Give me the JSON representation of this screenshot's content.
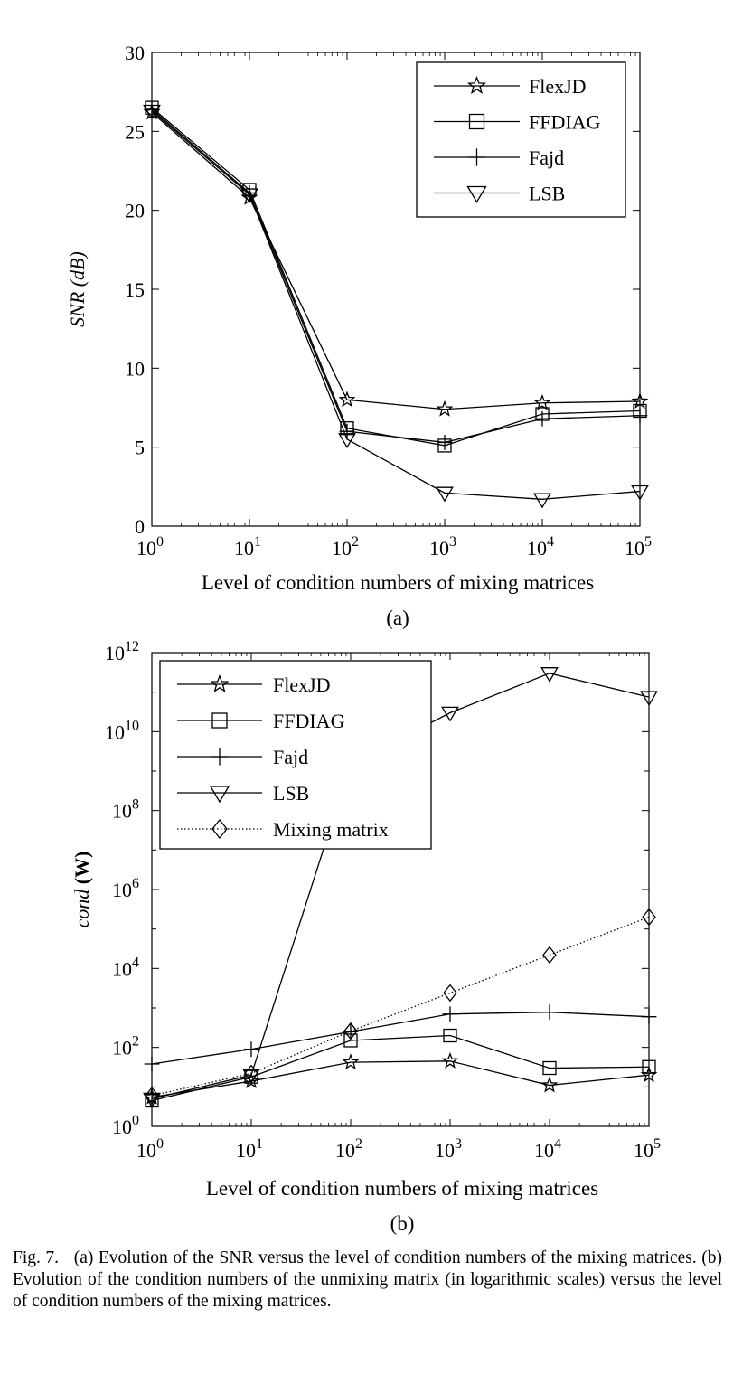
{
  "figure": {
    "caption_label": "Fig. 7.",
    "caption_text": "(a) Evolution of the SNR versus the level of condition numbers of the mixing matrices. (b) Evolution of the condition numbers of the unmixing matrix (in logarithmic scales) versus the level of condition numbers of the mixing matrices."
  },
  "chart_data": [
    {
      "type": "line",
      "panel_label": "(a)",
      "xlabel": "Level of condition numbers of mixing matrices",
      "ylabel": "SNR (dB)",
      "x_scale": "log",
      "x_ticks": [
        1,
        10,
        100,
        1000,
        10000,
        100000
      ],
      "x_tick_labels": [
        {
          "base": "10",
          "exp": "0"
        },
        {
          "base": "10",
          "exp": "1"
        },
        {
          "base": "10",
          "exp": "2"
        },
        {
          "base": "10",
          "exp": "3"
        },
        {
          "base": "10",
          "exp": "4"
        },
        {
          "base": "10",
          "exp": "5"
        }
      ],
      "xlim": [
        1,
        100000
      ],
      "ylim": [
        0,
        30
      ],
      "y_ticks": [
        0,
        5,
        10,
        15,
        20,
        25,
        30
      ],
      "y_tick_labels": [
        "0",
        "5",
        "10",
        "15",
        "20",
        "25",
        "30"
      ],
      "legend_position": "top-right",
      "grid": false,
      "x": [
        1,
        10,
        100,
        1000,
        10000,
        100000
      ],
      "series": [
        {
          "name": "FlexJD",
          "marker": "star",
          "style": "solid",
          "values": [
            26.2,
            20.8,
            8.0,
            7.4,
            7.8,
            7.9
          ]
        },
        {
          "name": "FFDIAG",
          "marker": "square",
          "style": "solid",
          "values": [
            26.5,
            21.3,
            6.2,
            5.1,
            7.1,
            7.3
          ]
        },
        {
          "name": "Fajd",
          "marker": "plus",
          "style": "solid",
          "values": [
            26.4,
            21.1,
            6.0,
            5.3,
            6.8,
            7.0
          ]
        },
        {
          "name": "LSB",
          "marker": "triangle-down",
          "style": "solid",
          "values": [
            26.3,
            21.0,
            5.5,
            2.1,
            1.7,
            2.2
          ]
        }
      ]
    },
    {
      "type": "line",
      "panel_label": "(b)",
      "xlabel": "Level of condition numbers of mixing matrices",
      "ylabel_italic": "cond",
      "ylabel_bold": "(W)",
      "x_scale": "log",
      "y_scale": "log",
      "x_ticks": [
        1,
        10,
        100,
        1000,
        10000,
        100000
      ],
      "x_tick_labels": [
        {
          "base": "10",
          "exp": "0"
        },
        {
          "base": "10",
          "exp": "1"
        },
        {
          "base": "10",
          "exp": "2"
        },
        {
          "base": "10",
          "exp": "3"
        },
        {
          "base": "10",
          "exp": "4"
        },
        {
          "base": "10",
          "exp": "5"
        }
      ],
      "xlim": [
        1,
        100000
      ],
      "ylim": [
        1,
        1000000000000
      ],
      "y_ticks": [
        1,
        100,
        10000,
        1000000,
        100000000,
        10000000000,
        1000000000000
      ],
      "y_tick_labels": [
        {
          "base": "10",
          "exp": "0"
        },
        {
          "base": "10",
          "exp": "2"
        },
        {
          "base": "10",
          "exp": "4"
        },
        {
          "base": "10",
          "exp": "6"
        },
        {
          "base": "10",
          "exp": "8"
        },
        {
          "base": "10",
          "exp": "10"
        },
        {
          "base": "10",
          "exp": "12"
        }
      ],
      "legend_position": "top-left",
      "grid": false,
      "x": [
        1,
        10,
        100,
        1000,
        10000,
        100000
      ],
      "series": [
        {
          "name": "FlexJD",
          "marker": "star",
          "style": "solid",
          "values": [
            5.5,
            14,
            42,
            45,
            11,
            20
          ]
        },
        {
          "name": "FFDIAG",
          "marker": "square",
          "style": "solid",
          "values": [
            4.5,
            18,
            150,
            200,
            30,
            32
          ]
        },
        {
          "name": "Fajd",
          "marker": "plus",
          "style": "solid",
          "values": [
            38,
            90,
            250,
            700,
            780,
            600
          ]
        },
        {
          "name": "LSB",
          "marker": "triangle-down",
          "style": "solid",
          "values": [
            5,
            20,
            1500000000,
            30000000000,
            300000000000,
            75000000000
          ]
        },
        {
          "name": "Mixing matrix",
          "marker": "diamond",
          "style": "dotted",
          "values": [
            6,
            22,
            260,
            2400,
            22000,
            200000
          ]
        }
      ]
    }
  ]
}
